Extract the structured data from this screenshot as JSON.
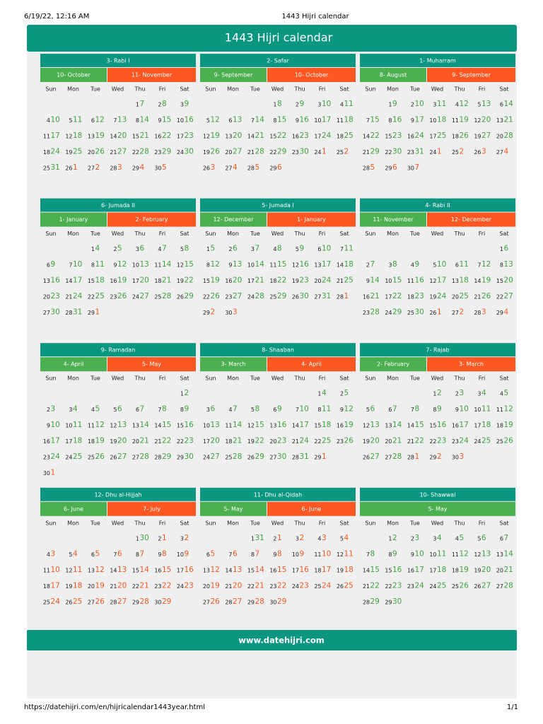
{
  "browser": {
    "date": "6/19/22, 12:16 AM",
    "title": "1443 Hijri calendar",
    "url": "https://datehijri.com/en/hijricalendar1443year.html",
    "page": "1/1"
  },
  "title": "1443 Hijri calendar",
  "weekdays": [
    "Sun",
    "Mon",
    "Tue",
    "Wed",
    "Thu",
    "Fri",
    "Sat"
  ],
  "months": [
    {
      "name": "3- Rabi I",
      "gregorian_months": [
        "10- October",
        "11- November"
      ],
      "hijri": [
        null,
        null,
        null,
        null,
        1,
        2,
        3,
        4,
        5,
        6,
        7,
        8,
        9,
        10,
        11,
        12,
        13,
        14,
        15,
        16,
        17,
        18,
        19,
        20,
        21,
        22,
        23,
        24,
        25,
        26,
        27,
        28,
        29,
        30
      ],
      "gregorian": [
        null,
        null,
        null,
        null,
        7,
        8,
        9,
        10,
        11,
        12,
        13,
        14,
        15,
        16,
        17,
        18,
        19,
        20,
        21,
        22,
        23,
        24,
        25,
        26,
        27,
        28,
        29,
        30,
        31,
        1,
        2,
        3,
        4,
        5
      ]
    },
    {
      "name": "2- Safar",
      "gregorian_months": [
        "9- September",
        "10- October"
      ],
      "hijri": [
        null,
        null,
        null,
        1,
        2,
        3,
        4,
        5,
        6,
        7,
        8,
        9,
        10,
        11,
        12,
        13,
        14,
        15,
        16,
        17,
        18,
        19,
        20,
        21,
        22,
        23,
        24,
        25,
        26,
        27,
        28,
        29
      ],
      "gregorian": [
        null,
        null,
        null,
        8,
        9,
        10,
        11,
        12,
        13,
        14,
        15,
        16,
        17,
        18,
        19,
        20,
        21,
        22,
        23,
        24,
        25,
        26,
        27,
        28,
        29,
        30,
        1,
        2,
        3,
        4,
        5,
        6
      ]
    },
    {
      "name": "1- Muharram",
      "gregorian_months": [
        "8- August",
        "9- September"
      ],
      "hijri": [
        null,
        1,
        2,
        3,
        4,
        5,
        6,
        7,
        8,
        9,
        10,
        11,
        12,
        13,
        14,
        15,
        16,
        17,
        18,
        19,
        20,
        21,
        22,
        23,
        24,
        25,
        26,
        27,
        28,
        29,
        30
      ],
      "gregorian": [
        null,
        9,
        10,
        11,
        12,
        13,
        14,
        15,
        16,
        17,
        18,
        19,
        20,
        21,
        22,
        23,
        24,
        25,
        26,
        27,
        28,
        29,
        30,
        31,
        1,
        2,
        3,
        4,
        5,
        6,
        7
      ]
    },
    {
      "name": "6- Jumada II",
      "gregorian_months": [
        "1- January",
        "2- February"
      ],
      "hijri": [
        null,
        null,
        1,
        2,
        3,
        4,
        5,
        6,
        7,
        8,
        9,
        10,
        11,
        12,
        13,
        14,
        15,
        16,
        17,
        18,
        19,
        20,
        21,
        22,
        23,
        24,
        25,
        26,
        27,
        28,
        29
      ],
      "gregorian": [
        null,
        null,
        4,
        5,
        6,
        7,
        8,
        9,
        10,
        11,
        12,
        13,
        14,
        15,
        16,
        17,
        18,
        19,
        20,
        21,
        22,
        23,
        24,
        25,
        26,
        27,
        28,
        29,
        30,
        31,
        1
      ]
    },
    {
      "name": "5- Jumada I",
      "gregorian_months": [
        "12- December",
        "1- January"
      ],
      "hijri": [
        1,
        2,
        3,
        4,
        5,
        6,
        7,
        8,
        9,
        10,
        11,
        12,
        13,
        14,
        15,
        16,
        17,
        18,
        19,
        20,
        21,
        22,
        23,
        24,
        25,
        26,
        27,
        28,
        29,
        30
      ],
      "gregorian": [
        5,
        6,
        7,
        8,
        9,
        10,
        11,
        12,
        13,
        14,
        15,
        16,
        17,
        18,
        19,
        20,
        21,
        22,
        23,
        24,
        25,
        26,
        27,
        28,
        29,
        30,
        31,
        1,
        2,
        3
      ]
    },
    {
      "name": "4- Rabi II",
      "gregorian_months": [
        "11- November",
        "12- December"
      ],
      "hijri": [
        null,
        null,
        null,
        null,
        null,
        null,
        1,
        2,
        3,
        4,
        5,
        6,
        7,
        8,
        9,
        10,
        11,
        12,
        13,
        14,
        15,
        16,
        17,
        18,
        19,
        20,
        21,
        22,
        23,
        24,
        25,
        26,
        27,
        28,
        29
      ],
      "gregorian": [
        null,
        null,
        null,
        null,
        null,
        null,
        6,
        7,
        8,
        9,
        10,
        11,
        12,
        13,
        14,
        15,
        16,
        17,
        18,
        19,
        20,
        21,
        22,
        23,
        24,
        25,
        26,
        27,
        28,
        29,
        30,
        1,
        2,
        3,
        4
      ]
    },
    {
      "name": "9- Ramadan",
      "gregorian_months": [
        "4- April",
        "5- May"
      ],
      "hijri": [
        null,
        null,
        null,
        null,
        null,
        null,
        1,
        2,
        3,
        4,
        5,
        6,
        7,
        8,
        9,
        10,
        11,
        12,
        13,
        14,
        15,
        16,
        17,
        18,
        19,
        20,
        21,
        22,
        23,
        24,
        25,
        26,
        27,
        28,
        29,
        30
      ],
      "gregorian": [
        null,
        null,
        null,
        null,
        null,
        null,
        2,
        3,
        4,
        5,
        6,
        7,
        8,
        9,
        10,
        11,
        12,
        13,
        14,
        15,
        16,
        17,
        18,
        19,
        20,
        21,
        22,
        23,
        24,
        25,
        26,
        27,
        28,
        29,
        30,
        1
      ]
    },
    {
      "name": "8- Shaaban",
      "gregorian_months": [
        "3- March",
        "4- April"
      ],
      "hijri": [
        null,
        null,
        null,
        null,
        null,
        1,
        2,
        3,
        4,
        5,
        6,
        7,
        8,
        9,
        10,
        11,
        12,
        13,
        14,
        15,
        16,
        17,
        18,
        19,
        20,
        21,
        22,
        23,
        24,
        25,
        26,
        27,
        28,
        29
      ],
      "gregorian": [
        null,
        null,
        null,
        null,
        null,
        4,
        5,
        6,
        7,
        8,
        9,
        10,
        11,
        12,
        13,
        14,
        15,
        16,
        17,
        18,
        19,
        20,
        21,
        22,
        23,
        24,
        25,
        26,
        27,
        28,
        29,
        30,
        31,
        1
      ]
    },
    {
      "name": "7- Rajab",
      "gregorian_months": [
        "2- February",
        "3- March"
      ],
      "hijri": [
        null,
        null,
        null,
        1,
        2,
        3,
        4,
        5,
        6,
        7,
        8,
        9,
        10,
        11,
        12,
        13,
        14,
        15,
        16,
        17,
        18,
        19,
        20,
        21,
        22,
        23,
        24,
        25,
        26,
        27,
        28,
        29,
        30
      ],
      "gregorian": [
        null,
        null,
        null,
        2,
        3,
        4,
        5,
        6,
        7,
        8,
        9,
        10,
        11,
        12,
        13,
        14,
        15,
        16,
        17,
        18,
        19,
        20,
        21,
        22,
        23,
        24,
        25,
        26,
        27,
        28,
        1,
        2,
        3
      ]
    },
    {
      "name": "12- Dhu al-Hijjah",
      "gregorian_months": [
        "6- June",
        "7- July"
      ],
      "hijri": [
        null,
        null,
        null,
        null,
        1,
        2,
        3,
        4,
        5,
        6,
        7,
        8,
        9,
        10,
        11,
        12,
        13,
        14,
        15,
        16,
        17,
        18,
        19,
        20,
        21,
        22,
        23,
        24,
        25,
        26,
        27,
        28,
        29,
        30
      ],
      "gregorian": [
        null,
        null,
        null,
        null,
        30,
        1,
        2,
        3,
        4,
        5,
        6,
        7,
        8,
        9,
        10,
        11,
        12,
        13,
        14,
        15,
        16,
        17,
        18,
        19,
        20,
        21,
        22,
        23,
        24,
        25,
        26,
        27,
        28,
        29
      ]
    },
    {
      "name": "11- Dhu al-Qidah",
      "gregorian_months": [
        "5- May",
        "6- June"
      ],
      "hijri": [
        null,
        null,
        1,
        2,
        3,
        4,
        5,
        6,
        7,
        8,
        9,
        10,
        11,
        12,
        13,
        14,
        15,
        16,
        17,
        18,
        19,
        20,
        21,
        22,
        23,
        24,
        25,
        26,
        27,
        28,
        29,
        30
      ],
      "gregorian": [
        null,
        null,
        31,
        1,
        2,
        3,
        4,
        5,
        6,
        7,
        8,
        9,
        10,
        11,
        12,
        13,
        14,
        15,
        16,
        17,
        18,
        19,
        20,
        21,
        22,
        23,
        24,
        25,
        26,
        27,
        28,
        29
      ]
    },
    {
      "name": "10- Shawwal",
      "gregorian_months": [
        "5- May"
      ],
      "hijri": [
        null,
        1,
        2,
        3,
        4,
        5,
        6,
        7,
        8,
        9,
        10,
        11,
        12,
        13,
        14,
        15,
        16,
        17,
        18,
        19,
        20,
        21,
        22,
        23,
        24,
        25,
        26,
        27,
        28,
        29
      ],
      "gregorian": [
        null,
        2,
        3,
        4,
        5,
        6,
        7,
        8,
        9,
        10,
        11,
        12,
        13,
        14,
        15,
        16,
        17,
        18,
        19,
        20,
        21,
        22,
        23,
        24,
        25,
        26,
        27,
        28,
        29,
        30
      ]
    }
  ],
  "footer": "www.datehijri.com"
}
